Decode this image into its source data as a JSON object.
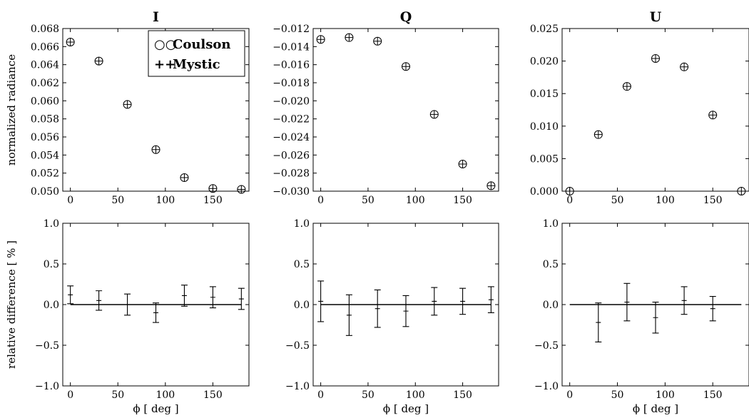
{
  "chart_data": [
    {
      "type": "scatter",
      "title": "I",
      "ylabel": "normalized radiance",
      "xlabel": "",
      "x": [
        0,
        30,
        60,
        90,
        120,
        150,
        180
      ],
      "series": [
        {
          "name": "Coulson",
          "marker": "circle",
          "values": [
            0.0665,
            0.0644,
            0.0596,
            0.0546,
            0.0515,
            0.0503,
            0.0502
          ]
        },
        {
          "name": "Mystic",
          "marker": "plus",
          "values": [
            0.0665,
            0.0644,
            0.0596,
            0.0546,
            0.0515,
            0.0503,
            0.0502
          ]
        }
      ],
      "xlim": [
        -8,
        188
      ],
      "ylim": [
        0.05,
        0.068
      ],
      "xticks": [
        0,
        50,
        100,
        150
      ],
      "yticks": [
        "0.050",
        "0.052",
        "0.054",
        "0.056",
        "0.058",
        "0.060",
        "0.062",
        "0.064",
        "0.066",
        "0.068"
      ],
      "legend": {
        "placement": "top-right",
        "entries": [
          {
            "symbol": "○○",
            "label": "Coulson"
          },
          {
            "symbol": "++",
            "label": "Mystic"
          }
        ]
      }
    },
    {
      "type": "scatter",
      "title": "Q",
      "ylabel": "",
      "xlabel": "",
      "x": [
        0,
        30,
        60,
        90,
        120,
        150,
        180
      ],
      "series": [
        {
          "name": "Coulson",
          "marker": "circle",
          "values": [
            -0.0132,
            -0.013,
            -0.0134,
            -0.0162,
            -0.0215,
            -0.027,
            -0.0294
          ]
        },
        {
          "name": "Mystic",
          "marker": "plus",
          "values": [
            -0.0132,
            -0.013,
            -0.0134,
            -0.0162,
            -0.0215,
            -0.027,
            -0.0294
          ]
        }
      ],
      "xlim": [
        -8,
        188
      ],
      "ylim": [
        -0.03,
        -0.012
      ],
      "xticks": [
        0,
        50,
        100,
        150
      ],
      "yticks": [
        "−0.030",
        "−0.028",
        "−0.026",
        "−0.024",
        "−0.022",
        "−0.020",
        "−0.018",
        "−0.016",
        "−0.014",
        "−0.012"
      ]
    },
    {
      "type": "scatter",
      "title": "U",
      "ylabel": "",
      "xlabel": "",
      "x": [
        0,
        30,
        60,
        90,
        120,
        150,
        180
      ],
      "series": [
        {
          "name": "Coulson",
          "marker": "circle",
          "values": [
            0.0,
            0.0087,
            0.0161,
            0.0204,
            0.0191,
            0.0117,
            0.0
          ]
        },
        {
          "name": "Mystic",
          "marker": "plus",
          "values": [
            0.0,
            0.0087,
            0.0161,
            0.0204,
            0.0191,
            0.0117,
            0.0
          ]
        }
      ],
      "xlim": [
        -8,
        188
      ],
      "ylim": [
        0.0,
        0.025
      ],
      "xticks": [
        0,
        50,
        100,
        150
      ],
      "yticks": [
        "0.000",
        "0.005",
        "0.010",
        "0.015",
        "0.020",
        "0.025"
      ]
    },
    {
      "type": "errorbar",
      "title": "",
      "ylabel": "relative difference [ % ]",
      "xlabel": "ϕ [ deg ]",
      "x": [
        0,
        30,
        60,
        90,
        120,
        150,
        180
      ],
      "values": [
        0.12,
        0.05,
        0.0,
        -0.1,
        0.11,
        0.09,
        0.07
      ],
      "errors": [
        0.11,
        0.12,
        0.13,
        0.12,
        0.13,
        0.13,
        0.13
      ],
      "reference_line": 0,
      "xlim": [
        -8,
        188
      ],
      "ylim": [
        -1.0,
        1.0
      ],
      "xticks": [
        0,
        50,
        100,
        150
      ],
      "yticks": [
        "−1.0",
        "−0.5",
        "0.0",
        "0.5",
        "1.0"
      ]
    },
    {
      "type": "errorbar",
      "title": "",
      "ylabel": "",
      "xlabel": "ϕ [ deg ]",
      "x": [
        0,
        30,
        60,
        90,
        120,
        150,
        180
      ],
      "values": [
        0.04,
        -0.13,
        -0.05,
        -0.08,
        0.04,
        0.04,
        0.06
      ],
      "errors": [
        0.25,
        0.25,
        0.23,
        0.19,
        0.17,
        0.16,
        0.16
      ],
      "reference_line": 0,
      "xlim": [
        -8,
        188
      ],
      "ylim": [
        -1.0,
        1.0
      ],
      "xticks": [
        0,
        50,
        100,
        150
      ],
      "yticks": [
        "−1.0",
        "−0.5",
        "0.0",
        "0.5",
        "1.0"
      ]
    },
    {
      "type": "errorbar",
      "title": "",
      "ylabel": "",
      "xlabel": "ϕ [ deg ]",
      "x": [
        30,
        60,
        90,
        120,
        150
      ],
      "values": [
        -0.22,
        0.03,
        -0.16,
        0.05,
        -0.05
      ],
      "errors": [
        0.24,
        0.23,
        0.19,
        0.17,
        0.15
      ],
      "reference_line": 0,
      "xlim": [
        -8,
        188
      ],
      "ylim": [
        -1.0,
        1.0
      ],
      "xticks": [
        0,
        50,
        100,
        150
      ],
      "yticks": [
        "−1.0",
        "−0.5",
        "0.0",
        "0.5",
        "1.0"
      ]
    }
  ]
}
